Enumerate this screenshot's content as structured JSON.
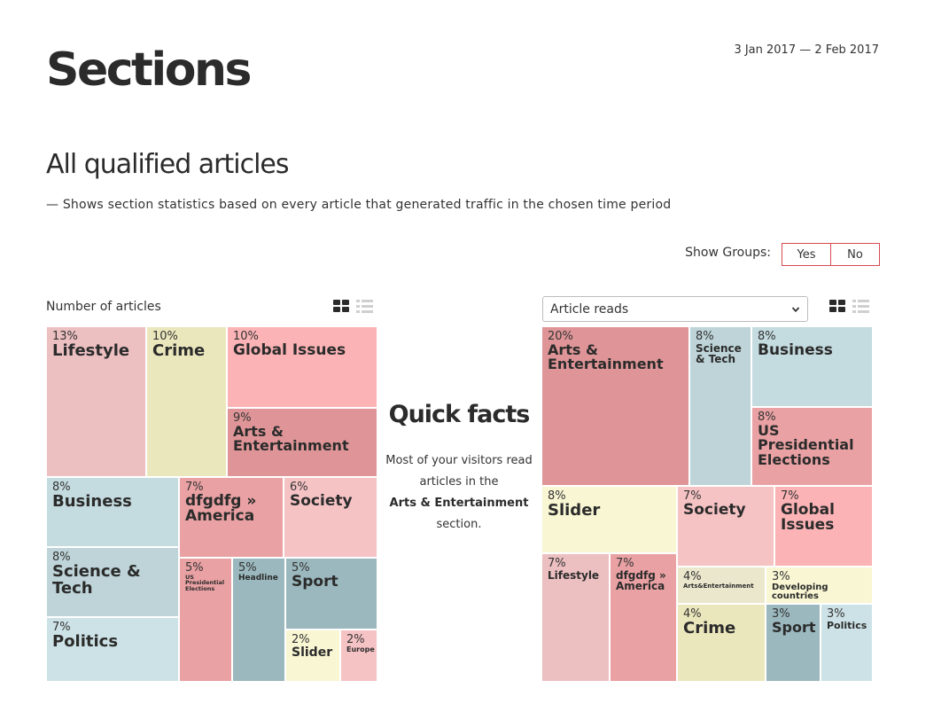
{
  "date_range": "3 Jan 2017 — 2 Feb 2017",
  "page_title": "Sections",
  "section": {
    "title": "All qualified articles",
    "description": "— Shows section statistics based on every article that generated traffic in the chosen time period"
  },
  "show_groups": {
    "label": "Show Groups:",
    "yes": "Yes",
    "no": "No",
    "selected": "No"
  },
  "left_chart": {
    "label": "Number of articles",
    "icons": [
      "grid-view-icon",
      "list-view-icon"
    ]
  },
  "right_chart": {
    "metric_select": "Article reads",
    "icons": [
      "grid-view-icon",
      "list-view-icon",
      "chevron-down-icon"
    ]
  },
  "quick_facts": {
    "title": "Quick facts",
    "text_before": "Most of your visitors read articles in the",
    "highlight": "Arts & Entertainment",
    "text_after": "section."
  },
  "colors": {
    "lifestyle": "#ecbfc1",
    "crime": "#ebe7bd",
    "global_issues": "#fbb3b5",
    "arts": "#df9597",
    "business": "#c4dbdf",
    "dfgdfg": "#e9a1a3",
    "society": "#f6c3c5",
    "science": "#bed4d8",
    "politics": "#cde2e6",
    "us_elections": "#e9a1a3",
    "headline": "#9bb8be",
    "sport": "#9bb8be",
    "slider": "#f8f6d3",
    "europe": "#f6c3c5",
    "arts_ent2": "#ebe7cd",
    "developing": "#f8f6d3"
  },
  "chart_data": [
    {
      "type": "treemap",
      "title": "Number of articles",
      "items": [
        {
          "name": "Lifestyle",
          "pct": "13%",
          "value": 13,
          "color": "#ecbfc1"
        },
        {
          "name": "Crime",
          "pct": "10%",
          "value": 10,
          "color": "#ebe7bd"
        },
        {
          "name": "Global Issues",
          "pct": "10%",
          "value": 10,
          "color": "#fbb3b5"
        },
        {
          "name": "Arts & Entertainment",
          "pct": "9%",
          "value": 9,
          "color": "#df9597"
        },
        {
          "name": "Business",
          "pct": "8%",
          "value": 8,
          "color": "#c4dbdf"
        },
        {
          "name": "dfgdfg » America",
          "pct": "7%",
          "value": 7,
          "color": "#e9a1a3"
        },
        {
          "name": "Society",
          "pct": "6%",
          "value": 6,
          "color": "#f6c3c5"
        },
        {
          "name": "Science & Tech",
          "pct": "8%",
          "value": 8,
          "color": "#bed4d8"
        },
        {
          "name": "Politics",
          "pct": "7%",
          "value": 7,
          "color": "#cde2e6"
        },
        {
          "name": "US Presidential Elections",
          "pct": "5%",
          "value": 5,
          "color": "#e9a1a3"
        },
        {
          "name": "Headline",
          "pct": "5%",
          "value": 5,
          "color": "#9bb8be"
        },
        {
          "name": "Sport",
          "pct": "5%",
          "value": 5,
          "color": "#9bb8be"
        },
        {
          "name": "Slider",
          "pct": "2%",
          "value": 2,
          "color": "#f8f6d3"
        },
        {
          "name": "Europe",
          "pct": "2%",
          "value": 2,
          "color": "#f6c3c5"
        }
      ]
    },
    {
      "type": "treemap",
      "title": "Article reads",
      "items": [
        {
          "name": "Arts & Entertainment",
          "pct": "20%",
          "value": 20,
          "color": "#df9597"
        },
        {
          "name": "Science & Tech",
          "pct": "8%",
          "value": 8,
          "color": "#bed4d8"
        },
        {
          "name": "Business",
          "pct": "8%",
          "value": 8,
          "color": "#c4dbdf"
        },
        {
          "name": "US Presidential Elections",
          "pct": "8%",
          "value": 8,
          "color": "#e9a1a3"
        },
        {
          "name": "Slider",
          "pct": "8%",
          "value": 8,
          "color": "#f8f6d3"
        },
        {
          "name": "Society",
          "pct": "7%",
          "value": 7,
          "color": "#f6c3c5"
        },
        {
          "name": "Global Issues",
          "pct": "7%",
          "value": 7,
          "color": "#fbb3b5"
        },
        {
          "name": "Lifestyle",
          "pct": "7%",
          "value": 7,
          "color": "#ecbfc1"
        },
        {
          "name": "dfgdfg » America",
          "pct": "7%",
          "value": 7,
          "color": "#e9a1a3"
        },
        {
          "name": "Arts&Entertainment",
          "pct": "4%",
          "value": 4,
          "color": "#ebe7cd"
        },
        {
          "name": "Developing countries",
          "pct": "3%",
          "value": 3,
          "color": "#f8f6d3"
        },
        {
          "name": "Crime",
          "pct": "4%",
          "value": 4,
          "color": "#ebe7bd"
        },
        {
          "name": "Sport",
          "pct": "3%",
          "value": 3,
          "color": "#9bb8be"
        },
        {
          "name": "Politics",
          "pct": "3%",
          "value": 3,
          "color": "#cde2e6"
        }
      ]
    }
  ]
}
